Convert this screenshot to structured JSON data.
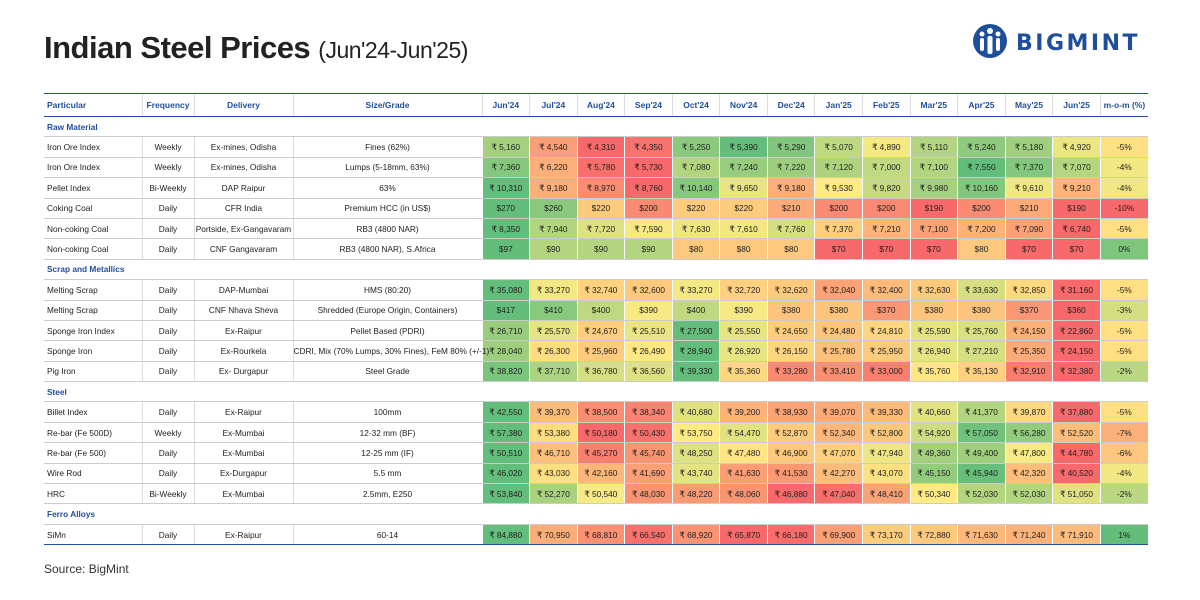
{
  "header": {
    "title": "Indian Steel Prices",
    "subtitle": "(Jun'24-Jun'25)",
    "logo": "BIGMINT"
  },
  "table": {
    "columns": [
      "Particular",
      "Frequency",
      "Delivery",
      "Size/Grade",
      "Jun'24",
      "Jul'24",
      "Aug'24",
      "Sep'24",
      "Oct'24",
      "Nov'24",
      "Dec'24",
      "Jan'25",
      "Feb'25",
      "Mar'25",
      "Apr'25",
      "May'25",
      "Jun'25",
      "m-o-m (%)"
    ],
    "sections": [
      {
        "name": "Raw Material",
        "rows": [
          {
            "particular": "Iron Ore Index",
            "frequency": "Weekly",
            "delivery": "Ex-mines, Odisha",
            "grade": "Fines (62%)",
            "prices": [
              "₹ 5,160",
              "₹ 4,540",
              "₹ 4,310",
              "₹ 4,350",
              "₹ 5,250",
              "₹ 5,390",
              "₹ 5,290",
              "₹ 5,070",
              "₹ 4,890",
              "₹ 5,110",
              "₹ 5,240",
              "₹ 5,180",
              "₹ 4,920"
            ],
            "mom": "-5%"
          },
          {
            "particular": "Iron Ore Index",
            "frequency": "Weekly",
            "delivery": "Ex-mines, Odisha",
            "grade": "Lumps (5-18mm, 63%)",
            "prices": [
              "₹ 7,360",
              "₹ 6,220",
              "₹ 5,780",
              "₹ 5,730",
              "₹ 7,080",
              "₹ 7,240",
              "₹ 7,220",
              "₹ 7,120",
              "₹ 7,000",
              "₹ 7,100",
              "₹ 7,550",
              "₹ 7,370",
              "₹ 7,070"
            ],
            "mom": "-4%"
          },
          {
            "particular": "Pellet Index",
            "frequency": "Bi-Weekly",
            "delivery": "DAP Raipur",
            "grade": "63%",
            "prices": [
              "₹ 10,310",
              "₹ 9,180",
              "₹ 8,970",
              "₹ 8,760",
              "₹ 10,140",
              "₹ 9,650",
              "₹ 9,180",
              "₹ 9,530",
              "₹ 9,820",
              "₹ 9,980",
              "₹ 10,160",
              "₹ 9,610",
              "₹ 9,210"
            ],
            "mom": "-4%"
          },
          {
            "particular": "Coking Coal",
            "frequency": "Daily",
            "delivery": "CFR India",
            "grade": "Premium HCC (in US$)",
            "prices": [
              "$270",
              "$260",
              "$220",
              "$200",
              "$220",
              "$220",
              "$210",
              "$200",
              "$200",
              "$190",
              "$200",
              "$210",
              "$190"
            ],
            "mom": "-10%"
          },
          {
            "particular": "Non-coking Coal",
            "frequency": "Daily",
            "delivery": "Portside, Ex-Gangavaram",
            "grade": "RB3 (4800 NAR)",
            "prices": [
              "₹ 8,350",
              "₹ 7,940",
              "₹ 7,720",
              "₹ 7,590",
              "₹ 7,630",
              "₹ 7,610",
              "₹ 7,760",
              "₹ 7,370",
              "₹ 7,210",
              "₹ 7,100",
              "₹ 7,200",
              "₹ 7,090",
              "₹ 6,740"
            ],
            "mom": "-5%"
          },
          {
            "particular": "Non-coking Coal",
            "frequency": "Daily",
            "delivery": "CNF Gangavaram",
            "grade": "RB3 (4800 NAR), S.Africa",
            "prices": [
              "$97",
              "$90",
              "$90",
              "$90",
              "$80",
              "$80",
              "$80",
              "$70",
              "$70",
              "$70",
              "$80",
              "$70",
              "$70"
            ],
            "mom": "0%"
          }
        ]
      },
      {
        "name": "Scrap and Metallics",
        "rows": [
          {
            "particular": "Melting Scrap",
            "frequency": "Daily",
            "delivery": "DAP-Mumbai",
            "grade": "HMS (80:20)",
            "prices": [
              "₹ 35,080",
              "₹ 33,270",
              "₹ 32,740",
              "₹ 32,600",
              "₹ 33,270",
              "₹ 32,720",
              "₹ 32,620",
              "₹ 32,040",
              "₹ 32,400",
              "₹ 32,630",
              "₹ 33,630",
              "₹ 32,850",
              "₹ 31,160"
            ],
            "mom": "-5%"
          },
          {
            "particular": "Melting Scrap",
            "frequency": "Daily",
            "delivery": "CNF Nhava Sheva",
            "grade": "Shredded (Europe Origin, Containers)",
            "prices": [
              "$417",
              "$410",
              "$400",
              "$390",
              "$400",
              "$390",
              "$380",
              "$380",
              "$370",
              "$380",
              "$380",
              "$370",
              "$360"
            ],
            "mom": "-3%"
          },
          {
            "particular": "Sponge Iron Index",
            "frequency": "Daily",
            "delivery": "Ex-Raipur",
            "grade": "Pellet Based (PDRI)",
            "prices": [
              "₹ 26,710",
              "₹ 25,570",
              "₹ 24,670",
              "₹ 25,510",
              "₹ 27,500",
              "₹ 25,550",
              "₹ 24,650",
              "₹ 24,480",
              "₹ 24,810",
              "₹ 25,590",
              "₹ 25,760",
              "₹ 24,150",
              "₹ 22,860"
            ],
            "mom": "-5%"
          },
          {
            "particular": "Sponge Iron",
            "frequency": "Daily",
            "delivery": "Ex-Rourkela",
            "grade": "CDRI, Mix (70% Lumps, 30% Fines), FeM 80% (+/-1)",
            "prices": [
              "₹ 28,040",
              "₹ 26,300",
              "₹ 25,960",
              "₹ 26,490",
              "₹ 28,940",
              "₹ 26,920",
              "₹ 26,150",
              "₹ 25,780",
              "₹ 25,950",
              "₹ 26,940",
              "₹ 27,210",
              "₹ 25,350",
              "₹ 24,150"
            ],
            "mom": "-5%"
          },
          {
            "particular": "Pig Iron",
            "frequency": "Daily",
            "delivery": "Ex- Durgapur",
            "grade": "Steel Grade",
            "prices": [
              "₹ 38,820",
              "₹ 37,710",
              "₹ 36,780",
              "₹ 36,560",
              "₹ 39,330",
              "₹ 35,360",
              "₹ 33,280",
              "₹ 33,410",
              "₹ 33,000",
              "₹ 35,760",
              "₹ 35,130",
              "₹ 32,910",
              "₹ 32,380"
            ],
            "mom": "-2%"
          }
        ]
      },
      {
        "name": "Steel",
        "rows": [
          {
            "particular": "Billet Index",
            "frequency": "Daily",
            "delivery": "Ex-Raipur",
            "grade": "100mm",
            "prices": [
              "₹ 42,550",
              "₹ 39,370",
              "₹ 38,500",
              "₹ 38,340",
              "₹ 40,680",
              "₹ 39,200",
              "₹ 38,930",
              "₹ 39,070",
              "₹ 39,330",
              "₹ 40,660",
              "₹ 41,370",
              "₹ 39,870",
              "₹ 37,880"
            ],
            "mom": "-5%"
          },
          {
            "particular": "Re-bar (Fe 500D)",
            "frequency": "Weekly",
            "delivery": "Ex-Mumbai",
            "grade": "12-32 mm (BF)",
            "prices": [
              "₹ 57,380",
              "₹ 53,380",
              "₹ 50,180",
              "₹ 50,430",
              "₹ 53,750",
              "₹ 54,470",
              "₹ 52,870",
              "₹ 52,340",
              "₹ 52,800",
              "₹ 54,920",
              "₹ 57,050",
              "₹ 56,280",
              "₹ 52,520"
            ],
            "mom": "-7%"
          },
          {
            "particular": "Re-bar (Fe 500)",
            "frequency": "Daily",
            "delivery": "Ex-Mumbai",
            "grade": "12-25 mm (IF)",
            "prices": [
              "₹ 50,510",
              "₹ 46,710",
              "₹ 45,270",
              "₹ 45,740",
              "₹ 48,250",
              "₹ 47,480",
              "₹ 46,900",
              "₹ 47,070",
              "₹ 47,940",
              "₹ 49,360",
              "₹ 49,400",
              "₹ 47,800",
              "₹ 44,780"
            ],
            "mom": "-6%"
          },
          {
            "particular": "Wire Rod",
            "frequency": "Daily",
            "delivery": "Ex-Durgapur",
            "grade": "5.5 mm",
            "prices": [
              "₹ 46,020",
              "₹ 43,030",
              "₹ 42,160",
              "₹ 41,690",
              "₹ 43,740",
              "₹ 41,630",
              "₹ 41,530",
              "₹ 42,270",
              "₹ 43,070",
              "₹ 45,150",
              "₹ 45,940",
              "₹ 42,320",
              "₹ 40,520"
            ],
            "mom": "-4%"
          },
          {
            "particular": "HRC",
            "frequency": "Bi-Weekly",
            "delivery": "Ex-Mumbai",
            "grade": "2.5mm, E250",
            "prices": [
              "₹ 53,840",
              "₹ 52,270",
              "₹ 50,540",
              "₹ 48,030",
              "₹ 48,220",
              "₹ 48,060",
              "₹ 46,880",
              "₹ 47,040",
              "₹ 48,410",
              "₹ 50,340",
              "₹ 52,030",
              "₹ 52,030",
              "₹ 51,050"
            ],
            "mom": "-2%"
          }
        ]
      },
      {
        "name": "Ferro Alloys",
        "rows": [
          {
            "particular": "SiMn",
            "frequency": "Daily",
            "delivery": "Ex-Raipur",
            "grade": "60-14",
            "prices": [
              "₹ 84,880",
              "₹ 70,950",
              "₹ 68,810",
              "₹ 66,540",
              "₹ 68,920",
              "₹ 65,870",
              "₹ 66,180",
              "₹ 69,900",
              "₹ 73,170",
              "₹ 72,880",
              "₹ 71,630",
              "₹ 71,240",
              "₹ 71,910"
            ],
            "mom": "1%"
          }
        ]
      }
    ]
  },
  "footer": {
    "source": "Source: BigMint"
  }
}
